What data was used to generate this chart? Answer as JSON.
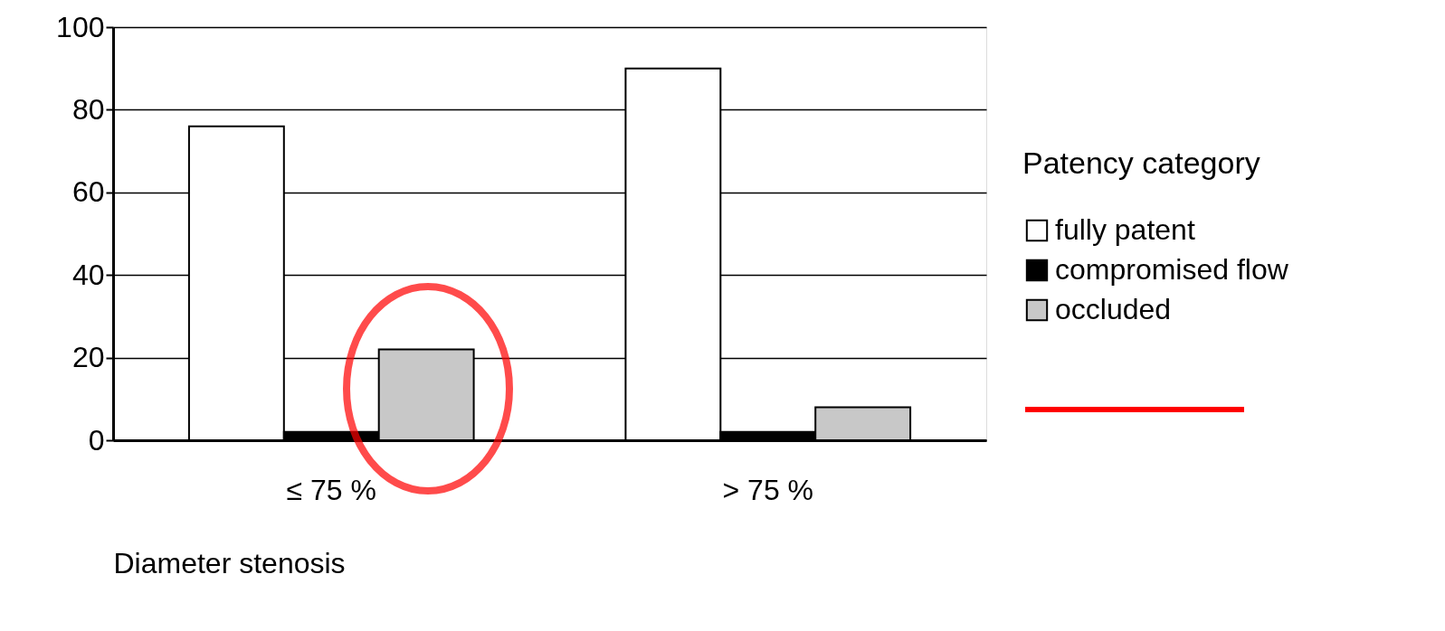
{
  "chart_data": {
    "type": "bar",
    "xlabel": "Diameter stenosis",
    "legend_title": "Patency category",
    "categories": [
      "≤ 75 %",
      "> 75 %"
    ],
    "series": [
      {
        "name": "fully patent",
        "color": "#ffffff",
        "values": [
          76,
          90
        ]
      },
      {
        "name": "compromised flow",
        "color": "#000000",
        "values": [
          2,
          2
        ]
      },
      {
        "name": "occluded",
        "color": "#c8c8c8",
        "values": [
          22,
          8
        ]
      }
    ],
    "ylim": [
      0,
      100
    ],
    "yticks": [
      0,
      20,
      40,
      60,
      80,
      100
    ],
    "grid": "y",
    "legend": "right"
  }
}
